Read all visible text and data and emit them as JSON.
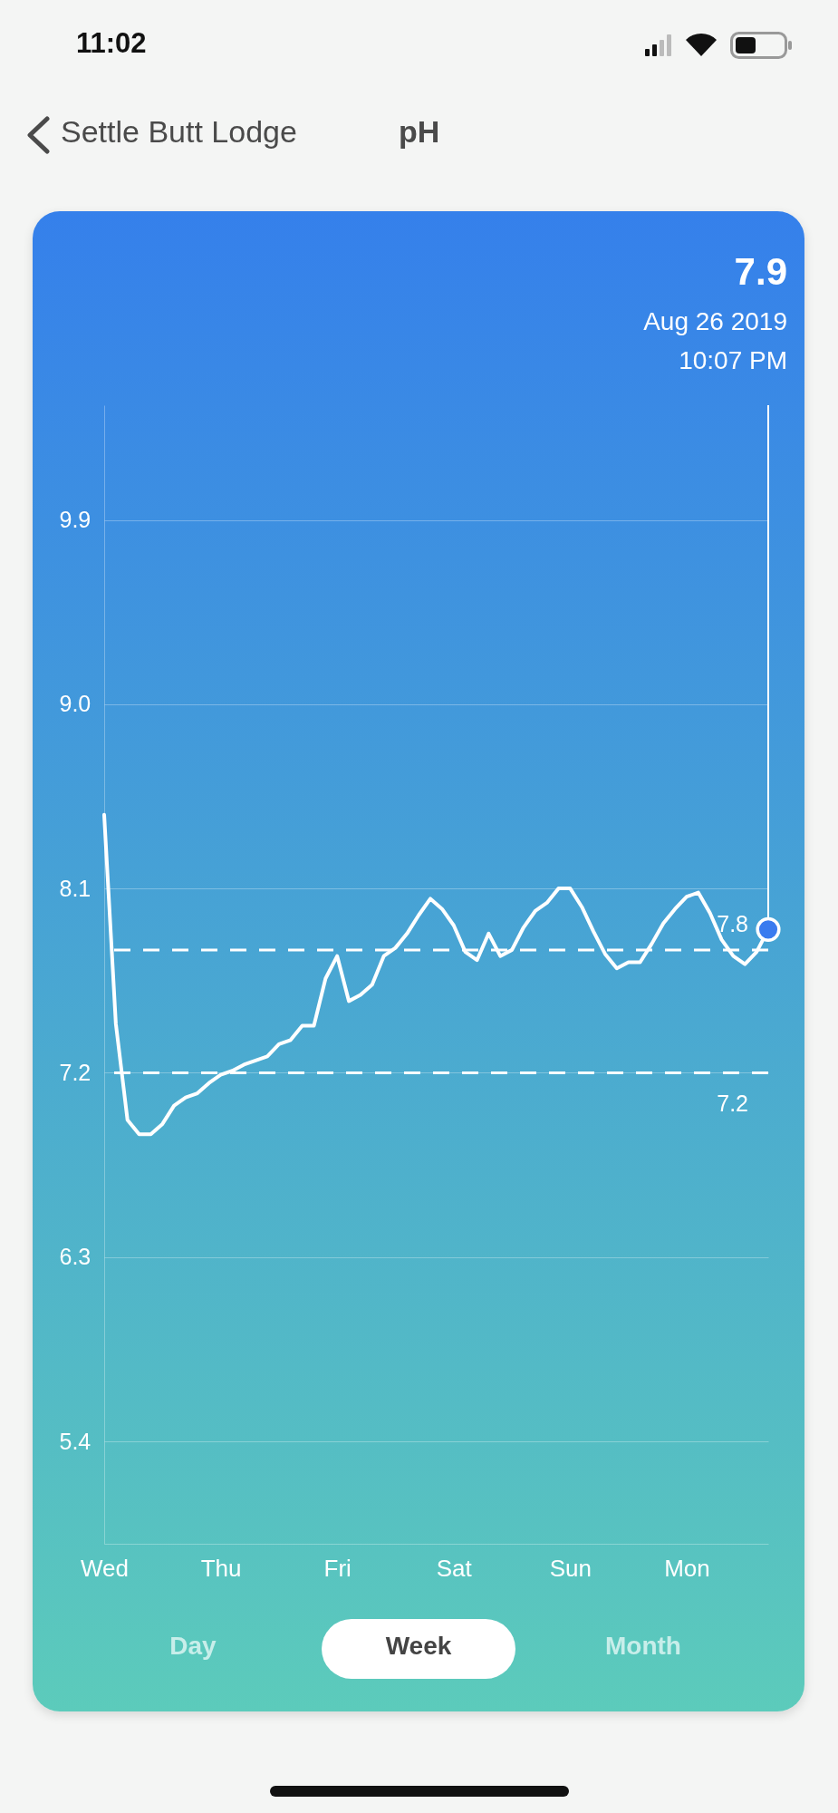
{
  "chart_data": {
    "type": "line",
    "title": "pH",
    "annotations": [
      "Settle Butt Lodge",
      "11:02",
      "Aug 26 2019",
      "10:07 PM",
      "Day",
      "Week",
      "Month",
      "7.9"
    ],
    "categories": [
      "Wed",
      null,
      null,
      null,
      null,
      null,
      null,
      null,
      null,
      null,
      "Thu",
      null,
      null,
      null,
      null,
      null,
      null,
      null,
      null,
      null,
      "Fri",
      null,
      null,
      null,
      null,
      null,
      null,
      null,
      null,
      null,
      "Sat",
      null,
      null,
      null,
      null,
      null,
      null,
      null,
      null,
      null,
      "Sun",
      null,
      null,
      null,
      null,
      null,
      null,
      null,
      null,
      null,
      "Mon",
      null,
      null,
      null,
      null,
      null,
      null,
      null
    ],
    "values": [
      8.46,
      7.44,
      6.97,
      6.9,
      6.9,
      6.95,
      7.04,
      7.08,
      7.1,
      7.15,
      7.19,
      7.21,
      7.24,
      7.26,
      7.28,
      7.34,
      7.36,
      7.43,
      7.43,
      7.66,
      7.77,
      7.55,
      7.58,
      7.63,
      7.77,
      7.81,
      7.88,
      7.97,
      8.05,
      8.0,
      7.92,
      7.79,
      7.75,
      7.88,
      7.77,
      7.8,
      7.91,
      7.99,
      8.03,
      8.1,
      8.1,
      8.01,
      7.89,
      7.78,
      7.71,
      7.74,
      7.74,
      7.83,
      7.93,
      8.0,
      8.06,
      8.08,
      7.98,
      7.85,
      7.77,
      7.73,
      7.79,
      7.9
    ],
    "color": "#ffffff",
    "ylim": [
      4.9,
      10.46
    ],
    "yticks": [
      5.4,
      6.3,
      7.2,
      8.1,
      {
        "value": 9,
        "label": "9.0"
      },
      9.9
    ],
    "grid": "y",
    "ref_lines": [
      {
        "axis": "y",
        "value": 7.8,
        "label": "7.8",
        "color": "#ffffff",
        "line_style": "dashed"
      },
      {
        "axis": "y",
        "value": 7.2,
        "label": "7.2",
        "color": "#ffffff",
        "line_style": "dashed"
      }
    ]
  }
}
